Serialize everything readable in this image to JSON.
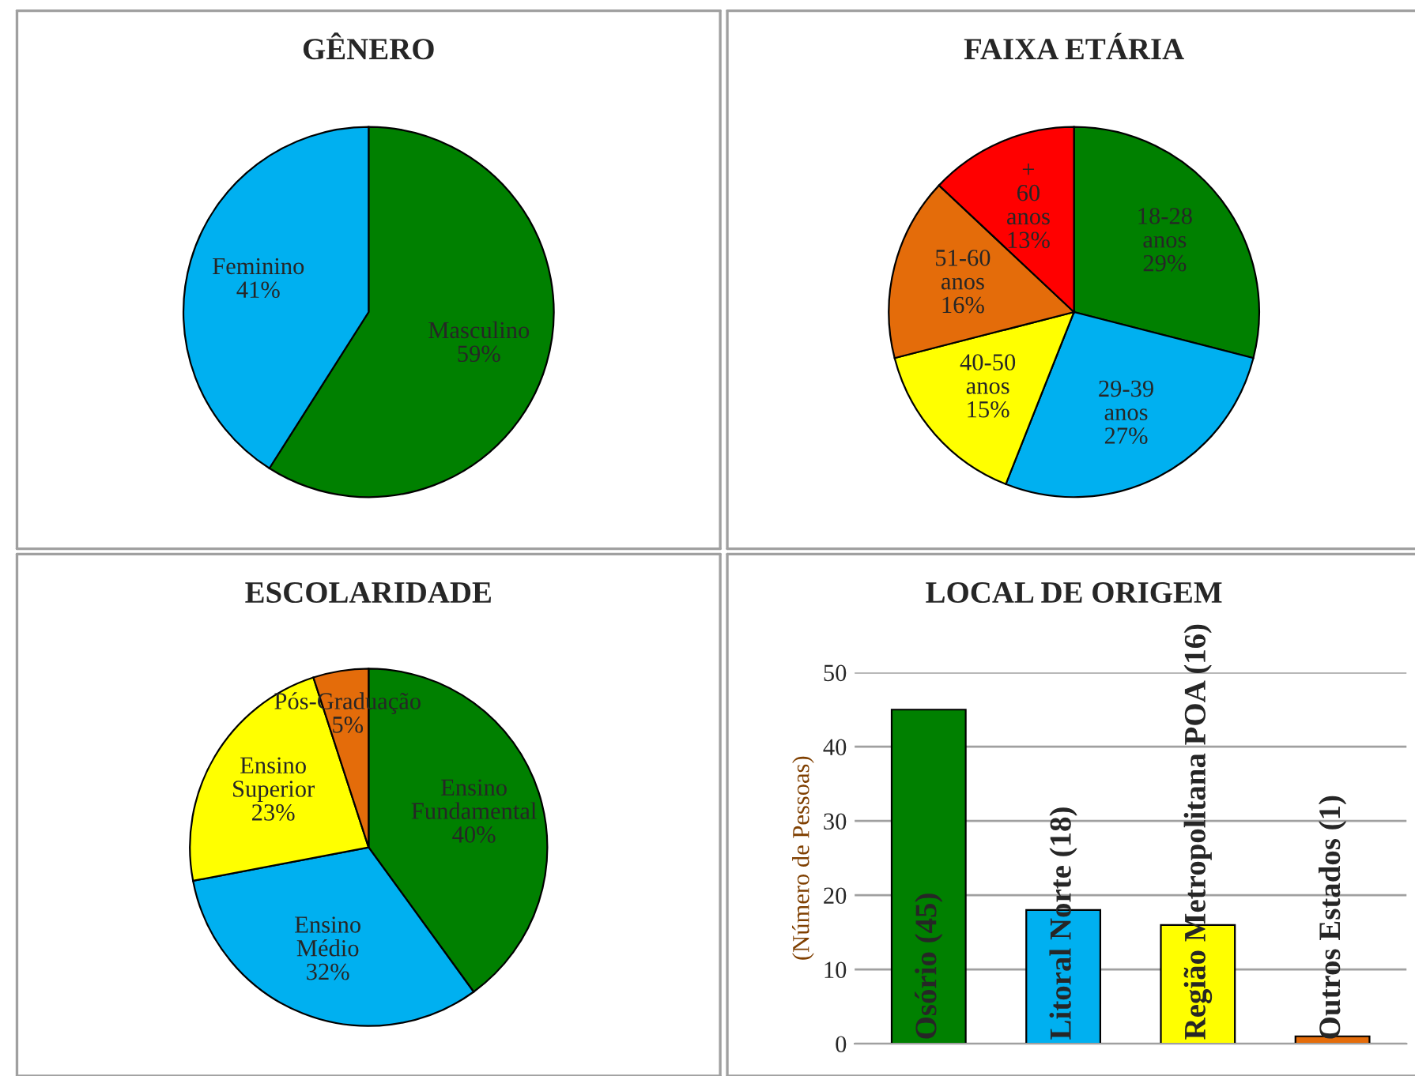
{
  "chart_data": [
    {
      "type": "pie",
      "title": "GÊNERO",
      "categories": [
        "Masculino",
        "Feminino"
      ],
      "values": [
        59,
        41
      ],
      "value_labels": [
        "59%",
        "41%"
      ],
      "colors": [
        "#008000",
        "#00b0f0"
      ]
    },
    {
      "type": "pie",
      "title": "FAIXA ETÁRIA",
      "categories": [
        "18-28 anos",
        "29-39 anos",
        "40-50 anos",
        "51-60 anos",
        "+ 60 anos"
      ],
      "values": [
        29,
        27,
        15,
        16,
        13
      ],
      "value_labels": [
        "29%",
        "27%",
        "15%",
        "16%",
        "13%"
      ],
      "colors": [
        "#008000",
        "#00b0f0",
        "#ffff00",
        "#e46c0a",
        "#ff0000"
      ]
    },
    {
      "type": "pie",
      "title": "ESCOLARIDADE",
      "categories": [
        "Ensino Fundamental",
        "Ensino Médio",
        "Ensino Superior",
        "Pós-Graduação"
      ],
      "values": [
        40,
        32,
        23,
        5
      ],
      "value_labels": [
        "40%",
        "32%",
        "23%",
        "5%"
      ],
      "colors": [
        "#008000",
        "#00b0f0",
        "#ffff00",
        "#e46c0a"
      ]
    },
    {
      "type": "bar",
      "title": "LOCAL DE ORIGEM",
      "ylabel": "(Número de Pessoas)",
      "categories": [
        "Osório (45)",
        "Litoral Norte (18)",
        "Região Metropolitana POA (16)",
        "Outros Estados (1)"
      ],
      "values": [
        45,
        18,
        16,
        1
      ],
      "colors": [
        "#008000",
        "#00b0f0",
        "#ffff00",
        "#e46c0a"
      ],
      "ylim": [
        0,
        50
      ],
      "yticks": [
        0,
        10,
        20,
        30,
        40,
        50
      ],
      "grid": "y"
    }
  ]
}
